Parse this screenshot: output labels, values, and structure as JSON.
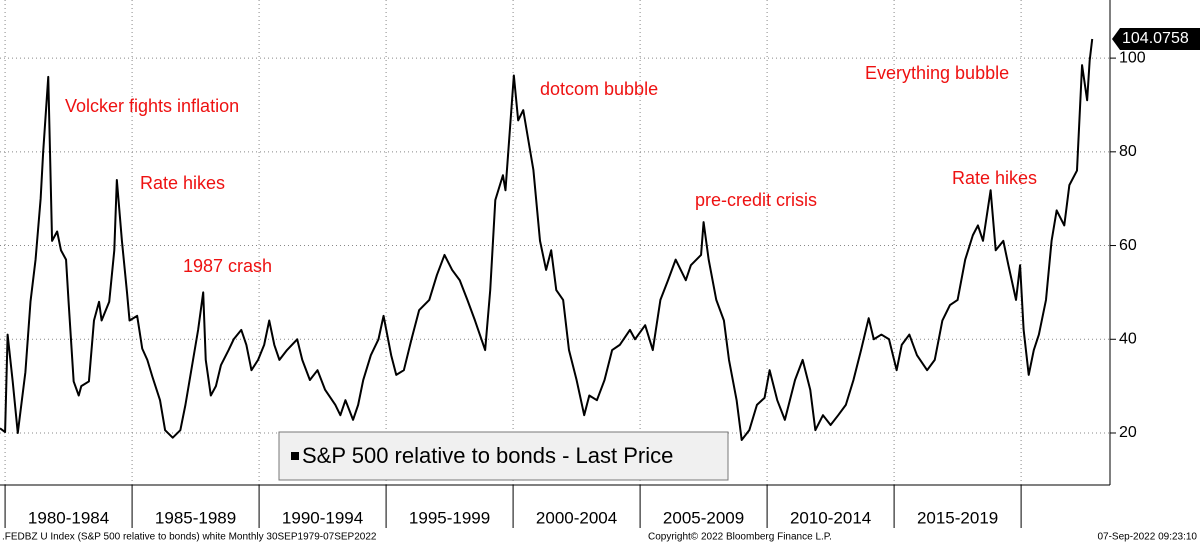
{
  "chart_data": {
    "type": "line",
    "x": [
      1979.8,
      1980.0,
      1980.1,
      1980.3,
      1980.5,
      1980.8,
      1981.0,
      1981.2,
      1981.4,
      1981.5,
      1981.7,
      1981.85,
      1982.05,
      1982.2,
      1982.4,
      1982.5,
      1982.7,
      1982.9,
      1983.0,
      1983.3,
      1983.5,
      1983.7,
      1983.8,
      1984.1,
      1984.3,
      1984.4,
      1984.6,
      1984.8,
      1984.9,
      1985.2,
      1985.4,
      1985.6,
      1985.8,
      1986.1,
      1986.3,
      1986.6,
      1986.9,
      1987.1,
      1987.4,
      1987.6,
      1987.8,
      1987.9,
      1988.1,
      1988.3,
      1988.5,
      1988.8,
      1989.0,
      1989.3,
      1989.5,
      1989.7,
      1989.96,
      1990.2,
      1990.4,
      1990.6,
      1990.8,
      1991.1,
      1991.5,
      1991.7,
      1992.0,
      1992.3,
      1992.6,
      1993.0,
      1993.2,
      1993.4,
      1993.7,
      1993.9,
      1994.1,
      1994.4,
      1994.7,
      1994.9,
      1995.2,
      1995.4,
      1995.7,
      1996.0,
      1996.3,
      1996.7,
      1997.0,
      1997.3,
      1997.6,
      1997.9,
      1998.2,
      1998.5,
      1998.9,
      1999.1,
      1999.3,
      1999.6,
      1999.7,
      2000.03,
      2000.2,
      2000.4,
      2000.6,
      2000.8,
      2001.06,
      2001.3,
      2001.5,
      2001.7,
      2001.97,
      2002.2,
      2002.5,
      2002.8,
      2003.0,
      2003.3,
      2003.6,
      2003.9,
      2004.2,
      2004.6,
      2004.8,
      2005.2,
      2005.5,
      2005.8,
      2006.1,
      2006.4,
      2006.8,
      2007.0,
      2007.4,
      2007.5,
      2007.7,
      2008.0,
      2008.3,
      2008.5,
      2008.8,
      2009.0,
      2009.3,
      2009.6,
      2009.9,
      2010.1,
      2010.4,
      2010.7,
      2011.1,
      2011.4,
      2011.7,
      2011.9,
      2012.2,
      2012.5,
      2012.8,
      2013.1,
      2013.4,
      2013.7,
      2014.0,
      2014.2,
      2014.5,
      2014.8,
      2015.1,
      2015.3,
      2015.6,
      2015.9,
      2016.3,
      2016.6,
      2016.9,
      2017.2,
      2017.5,
      2017.8,
      2018.1,
      2018.3,
      2018.5,
      2018.8,
      2019.0,
      2019.3,
      2019.5,
      2019.8,
      2019.96,
      2020.1,
      2020.3,
      2020.5,
      2020.7,
      2020.98,
      2021.2,
      2021.4,
      2021.7,
      2021.9,
      2022.2,
      2022.4,
      2022.6,
      2022.7,
      2022.8
    ],
    "series": [
      {
        "name": "S&P 500 relative to bonds - Last Price",
        "color": "#000000",
        "values": [
          21,
          20.2,
          41,
          31,
          20,
          33,
          48,
          57,
          70,
          80,
          96,
          61,
          63,
          59,
          57,
          48,
          31,
          28,
          30,
          31,
          44,
          48,
          44,
          48,
          59,
          74,
          61,
          50,
          44,
          45,
          38,
          35.6,
          32,
          27,
          20.6,
          19,
          20.6,
          26,
          35.6,
          42,
          50,
          35.6,
          28,
          30,
          34.5,
          37.7,
          40,
          42,
          38.8,
          33.4,
          35.6,
          38.8,
          44,
          38.8,
          35.6,
          37.7,
          40,
          35.6,
          31.3,
          33.4,
          29.2,
          26,
          23.8,
          27,
          22.8,
          26,
          31.3,
          36.6,
          40,
          45,
          36.6,
          32.4,
          33.4,
          40,
          46.2,
          48.4,
          53.7,
          58,
          54.8,
          52.6,
          48.4,
          44,
          37.7,
          50.5,
          69.7,
          75,
          71.8,
          96.3,
          86.7,
          88.9,
          82.5,
          76.1,
          61,
          54.8,
          59,
          50.5,
          48.4,
          37.7,
          31.3,
          23.8,
          28,
          27,
          31.3,
          37.7,
          38.8,
          42,
          40,
          43,
          37.7,
          48.4,
          52.6,
          57,
          52.6,
          55.8,
          58,
          65,
          57,
          48.4,
          44,
          35.6,
          27,
          18.5,
          20.6,
          26,
          27.5,
          33.4,
          27,
          22.8,
          31.3,
          35.6,
          29.2,
          20.6,
          23.8,
          21.7,
          23.8,
          26,
          31.3,
          37.7,
          44.5,
          40,
          41,
          40,
          33.4,
          38.8,
          41,
          36.6,
          33.4,
          35.6,
          44,
          47.3,
          48.4,
          57,
          62.2,
          64.3,
          61,
          71.8,
          59,
          61,
          55.8,
          48.4,
          55.8,
          42,
          32.4,
          37.7,
          41,
          48.4,
          61,
          67.5,
          64.3,
          72.9,
          76,
          98.5,
          91,
          99.5,
          104.0758
        ]
      }
    ],
    "xlim": [
      1979.8,
      2023.5
    ],
    "period_edges": [
      1980,
      1985,
      1990,
      1995,
      2000,
      2005,
      2010,
      2015,
      2020
    ],
    "periods": [
      "1980-1984",
      "1985-1989",
      "1990-1994",
      "1995-1999",
      "2000-2004",
      "2005-2009",
      "2010-2014",
      "2015-2019"
    ],
    "ylim": [
      8.9,
      112.4
    ],
    "yticks": [
      20,
      40,
      60,
      80,
      100
    ],
    "grid": true,
    "annotation_color": "#ee1111",
    "annotations": [
      "Volcker fights inflation",
      "Rate hikes",
      "1987 crash",
      "dotcom bubble",
      "pre-credit crisis",
      "Rate hikes",
      "Everything bubble"
    ],
    "footer": [
      ".FEDBZ U Index (S&P 500 relative to bonds) white  Monthly 30SEP1979-07SEP2022",
      "Copyright© 2022 Bloomberg Finance L.P.",
      "07-Sep-2022 09:23:10"
    ]
  }
}
